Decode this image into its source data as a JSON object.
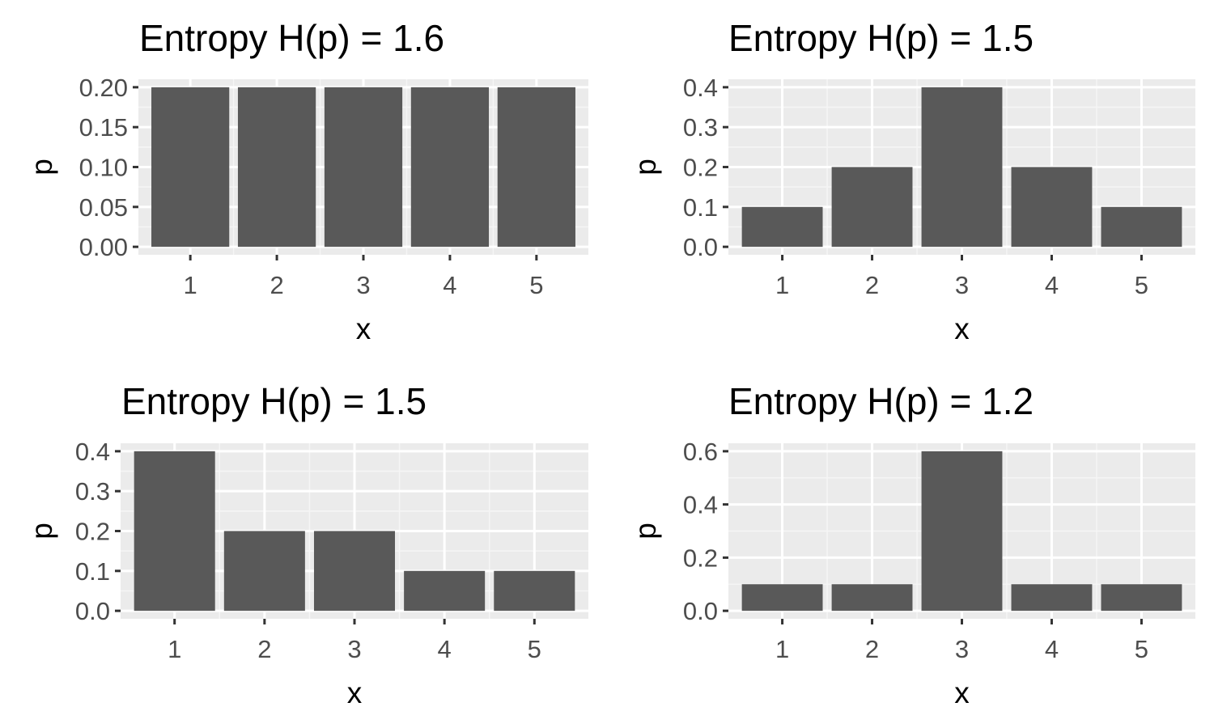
{
  "colors": {
    "panel_background": "#ebebeb",
    "grid_major": "#ffffff",
    "grid_minor": "#f5f5f5",
    "bar_fill": "#595959",
    "tick_color": "#333333",
    "tick_label_color": "#4d4d4d"
  },
  "chart_data": [
    {
      "type": "bar",
      "title": "Entropy H(p) = 1.6",
      "xlabel": "x",
      "ylabel": "p",
      "categories": [
        "1",
        "2",
        "3",
        "4",
        "5"
      ],
      "values": [
        0.2,
        0.2,
        0.2,
        0.2,
        0.2
      ],
      "ylim": [
        0,
        0.2
      ],
      "yticks": [
        0,
        0.05,
        0.1,
        0.15,
        0.2
      ],
      "ytick_labels": [
        "0.00",
        "0.05",
        "0.10",
        "0.15",
        "0.20"
      ],
      "grid": true
    },
    {
      "type": "bar",
      "title": "Entropy H(p) = 1.5",
      "xlabel": "x",
      "ylabel": "p",
      "categories": [
        "1",
        "2",
        "3",
        "4",
        "5"
      ],
      "values": [
        0.1,
        0.2,
        0.4,
        0.2,
        0.1
      ],
      "ylim": [
        0,
        0.4
      ],
      "yticks": [
        0,
        0.1,
        0.2,
        0.3,
        0.4
      ],
      "ytick_labels": [
        "0.0",
        "0.1",
        "0.2",
        "0.3",
        "0.4"
      ],
      "grid": true
    },
    {
      "type": "bar",
      "title": "Entropy H(p) = 1.5",
      "xlabel": "x",
      "ylabel": "p",
      "categories": [
        "1",
        "2",
        "3",
        "4",
        "5"
      ],
      "values": [
        0.4,
        0.2,
        0.2,
        0.1,
        0.1
      ],
      "ylim": [
        0,
        0.4
      ],
      "yticks": [
        0,
        0.1,
        0.2,
        0.3,
        0.4
      ],
      "ytick_labels": [
        "0.0",
        "0.1",
        "0.2",
        "0.3",
        "0.4"
      ],
      "grid": true
    },
    {
      "type": "bar",
      "title": "Entropy H(p) = 1.2",
      "xlabel": "x",
      "ylabel": "p",
      "categories": [
        "1",
        "2",
        "3",
        "4",
        "5"
      ],
      "values": [
        0.1,
        0.1,
        0.6,
        0.1,
        0.1
      ],
      "ylim": [
        0,
        0.6
      ],
      "yticks": [
        0,
        0.2,
        0.4,
        0.6
      ],
      "ytick_labels": [
        "0.0",
        "0.2",
        "0.4",
        "0.6"
      ],
      "grid": true
    }
  ]
}
